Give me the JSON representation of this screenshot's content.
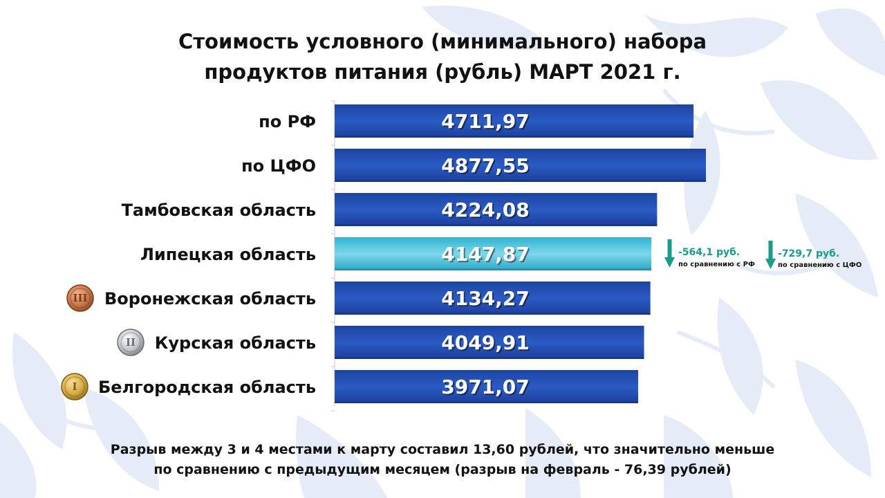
{
  "title": {
    "line1": "Стоимость условного (минимального) набора",
    "line2": "продуктов питания (рубль) МАРТ 2021 г."
  },
  "footer": {
    "line1": "Разрыв между 3 и 4 местами к марту составил 13,60 рублей, что значительно меньше",
    "line2": "по сравнению с предыдущим месяцем (разрыв на февраль - 76,39 рублей)"
  },
  "colors": {
    "bar_blue": "#2452b3",
    "bar_highlight": "#3cb4d4",
    "annotation_teal": "#1a9c8a",
    "ornament": "#e6ecf7"
  },
  "chart_data": {
    "type": "bar",
    "orientation": "horizontal",
    "title": "Стоимость условного (минимального) набора продуктов питания (рубль) МАРТ 2021 г.",
    "categories": [
      "по РФ",
      "по ЦФО",
      "Тамбовская область",
      "Липецкая область",
      "Воронежская область",
      "Курская область",
      "Белгородская область"
    ],
    "values": [
      4711.97,
      4877.55,
      4224.08,
      4147.87,
      4134.27,
      4049.91,
      3971.07
    ],
    "value_labels": [
      "4711,97",
      "4877,55",
      "4224,08",
      "4147,87",
      "4134,27",
      "4049,91",
      "3971,07"
    ],
    "highlighted_category": "Липецкая область",
    "medals": [
      {
        "category": "Воронежская область",
        "rank": "III",
        "type": "bronze"
      },
      {
        "category": "Курская область",
        "rank": "II",
        "type": "silver"
      },
      {
        "category": "Белгородская область",
        "rank": "I",
        "type": "gold"
      }
    ],
    "annotations": [
      {
        "value": "-564,1 руб.",
        "text": "по сравнению с РФ",
        "icon": "arrow-down-icon"
      },
      {
        "value": "-729,7 руб.",
        "text": "по сравнению с ЦФО",
        "icon": "arrow-down-icon"
      }
    ],
    "legend": "none",
    "grid": false
  }
}
